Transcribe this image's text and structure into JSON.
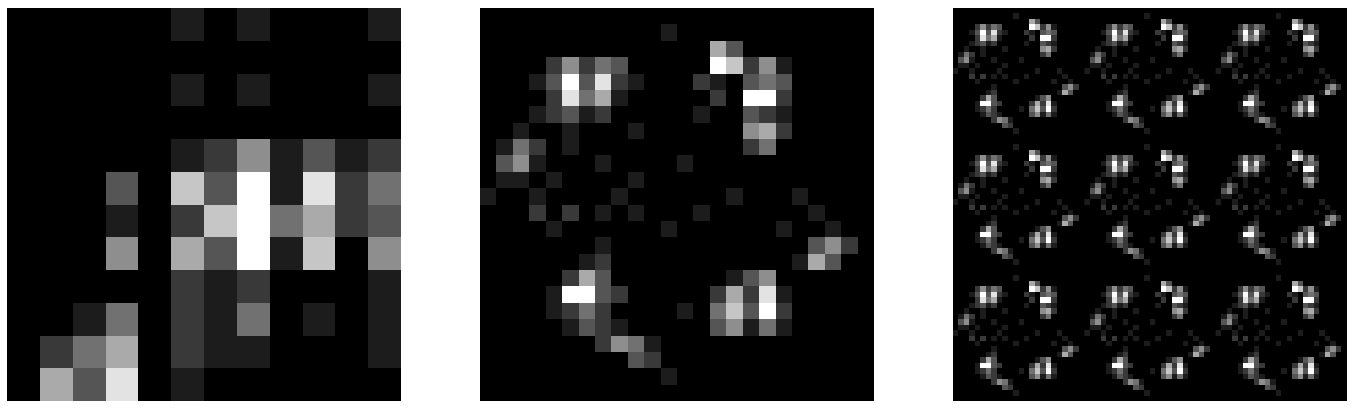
{
  "chart_data": [
    {
      "type": "heatmap",
      "zlim": [
        0,
        9
      ],
      "tick_labels": false,
      "z": [
        [
          0,
          0,
          0,
          0,
          0,
          1,
          0,
          1,
          0,
          0,
          0,
          1
        ],
        [
          0,
          0,
          0,
          0,
          0,
          0,
          0,
          0,
          0,
          0,
          0,
          0
        ],
        [
          0,
          0,
          0,
          0,
          0,
          1,
          0,
          1,
          0,
          0,
          0,
          1
        ],
        [
          0,
          0,
          0,
          0,
          0,
          0,
          0,
          0,
          0,
          0,
          0,
          0
        ],
        [
          0,
          0,
          0,
          0,
          0,
          1,
          2,
          5,
          1,
          3,
          1,
          2
        ],
        [
          0,
          0,
          0,
          3,
          0,
          7,
          3,
          9,
          1,
          8,
          2,
          4
        ],
        [
          0,
          0,
          0,
          1,
          0,
          2,
          7,
          9,
          4,
          6,
          2,
          3
        ],
        [
          0,
          0,
          0,
          5,
          0,
          6,
          3,
          9,
          1,
          7,
          0,
          5
        ],
        [
          0,
          0,
          0,
          0,
          0,
          2,
          1,
          2,
          0,
          0,
          0,
          1
        ],
        [
          0,
          0,
          1,
          4,
          0,
          2,
          1,
          4,
          0,
          1,
          0,
          1
        ],
        [
          0,
          2,
          4,
          6,
          0,
          2,
          1,
          1,
          0,
          0,
          0,
          1
        ],
        [
          0,
          6,
          3,
          8,
          0,
          1,
          0,
          0,
          0,
          0,
          0,
          0
        ]
      ]
    },
    {
      "type": "heatmap",
      "zlim": [
        0,
        9
      ],
      "tick_labels": false,
      "z": [
        [
          0,
          0,
          0,
          0,
          0,
          0,
          0,
          0,
          0,
          0,
          0,
          0,
          0,
          0,
          0,
          0,
          0,
          0,
          0,
          0,
          0,
          0,
          0,
          0
        ],
        [
          0,
          0,
          0,
          0,
          0,
          0,
          0,
          0,
          0,
          0,
          0,
          1,
          0,
          0,
          0,
          0,
          0,
          0,
          0,
          0,
          0,
          0,
          0,
          0
        ],
        [
          0,
          0,
          0,
          0,
          0,
          0,
          0,
          0,
          0,
          0,
          0,
          0,
          0,
          0,
          6,
          3,
          0,
          0,
          0,
          0,
          0,
          0,
          0,
          0
        ],
        [
          0,
          0,
          0,
          0,
          2,
          5,
          2,
          4,
          3,
          0,
          0,
          0,
          0,
          0,
          9,
          7,
          2,
          5,
          1,
          0,
          0,
          0,
          0,
          0
        ],
        [
          0,
          0,
          0,
          1,
          3,
          9,
          3,
          8,
          2,
          1,
          0,
          0,
          0,
          2,
          1,
          0,
          3,
          4,
          3,
          0,
          0,
          0,
          0,
          0
        ],
        [
          0,
          0,
          0,
          0,
          2,
          8,
          4,
          6,
          1,
          0,
          0,
          0,
          0,
          0,
          2,
          0,
          9,
          9,
          2,
          0,
          0,
          0,
          0,
          0
        ],
        [
          0,
          0,
          0,
          1,
          2,
          3,
          1,
          2,
          0,
          0,
          0,
          0,
          0,
          1,
          0,
          0,
          3,
          2,
          1,
          0,
          0,
          0,
          0,
          0
        ],
        [
          0,
          0,
          1,
          0,
          0,
          1,
          0,
          0,
          0,
          1,
          0,
          0,
          0,
          0,
          0,
          0,
          5,
          6,
          2,
          0,
          0,
          0,
          0,
          0
        ],
        [
          0,
          1,
          4,
          2,
          0,
          1,
          0,
          0,
          0,
          0,
          0,
          0,
          0,
          0,
          0,
          0,
          2,
          4,
          0,
          0,
          0,
          0,
          0,
          0
        ],
        [
          0,
          3,
          5,
          1,
          0,
          0,
          0,
          1,
          0,
          0,
          0,
          0,
          1,
          0,
          0,
          0,
          0,
          0,
          0,
          0,
          0,
          0,
          0,
          0
        ],
        [
          0,
          1,
          1,
          0,
          1,
          0,
          0,
          0,
          0,
          1,
          0,
          0,
          0,
          0,
          0,
          0,
          0,
          0,
          0,
          0,
          0,
          0,
          0,
          0
        ],
        [
          1,
          0,
          0,
          1,
          0,
          0,
          0,
          0,
          1,
          0,
          0,
          0,
          0,
          0,
          0,
          1,
          0,
          0,
          0,
          1,
          0,
          0,
          0,
          0
        ],
        [
          0,
          0,
          0,
          2,
          0,
          2,
          0,
          1,
          0,
          1,
          0,
          0,
          0,
          1,
          0,
          0,
          0,
          0,
          0,
          0,
          1,
          0,
          0,
          0
        ],
        [
          0,
          0,
          0,
          0,
          1,
          0,
          0,
          0,
          0,
          0,
          0,
          1,
          0,
          0,
          0,
          0,
          0,
          0,
          1,
          0,
          0,
          1,
          0,
          0
        ],
        [
          0,
          0,
          0,
          0,
          0,
          0,
          0,
          1,
          0,
          0,
          0,
          0,
          0,
          0,
          0,
          0,
          0,
          0,
          0,
          0,
          3,
          5,
          2,
          0
        ],
        [
          0,
          0,
          0,
          0,
          0,
          0,
          1,
          2,
          0,
          0,
          0,
          0,
          0,
          0,
          0,
          0,
          0,
          0,
          0,
          1,
          6,
          3,
          0,
          0
        ],
        [
          0,
          0,
          0,
          0,
          0,
          2,
          6,
          3,
          0,
          0,
          0,
          0,
          0,
          0,
          0,
          1,
          3,
          5,
          0,
          0,
          0,
          0,
          0,
          0
        ],
        [
          0,
          0,
          0,
          0,
          1,
          9,
          9,
          3,
          2,
          0,
          0,
          0,
          0,
          0,
          2,
          6,
          2,
          8,
          1,
          0,
          0,
          0,
          0,
          0
        ],
        [
          0,
          0,
          0,
          0,
          1,
          2,
          4,
          2,
          0,
          0,
          0,
          0,
          1,
          0,
          4,
          7,
          3,
          9,
          2,
          0,
          0,
          0,
          0,
          0
        ],
        [
          0,
          0,
          0,
          0,
          0,
          1,
          3,
          2,
          1,
          0,
          0,
          0,
          0,
          0,
          3,
          5,
          1,
          4,
          1,
          0,
          0,
          0,
          0,
          0
        ],
        [
          0,
          0,
          0,
          0,
          0,
          0,
          0,
          2,
          5,
          4,
          1,
          0,
          0,
          0,
          0,
          0,
          0,
          0,
          0,
          0,
          0,
          0,
          0,
          0
        ],
        [
          0,
          0,
          0,
          0,
          0,
          0,
          0,
          0,
          0,
          3,
          2,
          0,
          0,
          0,
          0,
          0,
          0,
          0,
          0,
          0,
          0,
          0,
          0,
          0
        ],
        [
          0,
          0,
          0,
          0,
          0,
          0,
          0,
          0,
          0,
          0,
          0,
          1,
          0,
          0,
          0,
          0,
          0,
          0,
          0,
          0,
          0,
          0,
          0,
          0
        ],
        [
          0,
          0,
          0,
          0,
          0,
          0,
          0,
          0,
          0,
          0,
          0,
          0,
          0,
          0,
          0,
          0,
          0,
          0,
          0,
          0,
          0,
          0,
          0,
          0
        ]
      ]
    },
    {
      "type": "heatmap",
      "zlim": [
        0,
        9
      ],
      "tick_labels": false,
      "repeat": [
        3,
        3
      ],
      "z": [
        [
          0,
          0,
          0,
          0,
          0,
          0,
          0,
          0,
          0,
          0,
          0,
          0,
          0,
          0,
          0,
          0,
          0,
          0,
          0,
          0,
          0,
          0,
          0,
          0
        ],
        [
          0,
          0,
          0,
          0,
          0,
          0,
          0,
          0,
          0,
          0,
          0,
          1,
          0,
          0,
          0,
          0,
          0,
          0,
          0,
          0,
          0,
          0,
          0,
          0
        ],
        [
          0,
          0,
          0,
          0,
          0,
          0,
          0,
          0,
          0,
          0,
          0,
          0,
          0,
          0,
          6,
          3,
          0,
          0,
          0,
          0,
          0,
          0,
          0,
          0
        ],
        [
          0,
          0,
          0,
          0,
          2,
          5,
          2,
          4,
          3,
          0,
          0,
          0,
          0,
          0,
          9,
          7,
          2,
          5,
          1,
          0,
          0,
          0,
          0,
          0
        ],
        [
          0,
          0,
          0,
          1,
          3,
          9,
          3,
          8,
          2,
          1,
          0,
          0,
          0,
          2,
          1,
          0,
          3,
          4,
          3,
          0,
          0,
          0,
          0,
          0
        ],
        [
          0,
          0,
          0,
          0,
          2,
          8,
          4,
          6,
          1,
          0,
          0,
          0,
          0,
          0,
          2,
          0,
          9,
          9,
          2,
          0,
          0,
          0,
          0,
          0
        ],
        [
          0,
          0,
          0,
          1,
          2,
          3,
          1,
          2,
          0,
          0,
          0,
          0,
          0,
          1,
          0,
          0,
          3,
          2,
          1,
          0,
          0,
          0,
          0,
          0
        ],
        [
          0,
          0,
          1,
          0,
          0,
          1,
          0,
          0,
          0,
          1,
          0,
          0,
          0,
          0,
          0,
          0,
          5,
          6,
          2,
          0,
          0,
          0,
          0,
          0
        ],
        [
          0,
          1,
          4,
          2,
          0,
          1,
          0,
          0,
          0,
          0,
          0,
          0,
          0,
          0,
          0,
          0,
          2,
          4,
          0,
          0,
          0,
          0,
          0,
          0
        ],
        [
          0,
          3,
          5,
          1,
          0,
          0,
          0,
          1,
          0,
          0,
          0,
          0,
          1,
          0,
          0,
          0,
          0,
          0,
          0,
          0,
          0,
          0,
          0,
          0
        ],
        [
          0,
          1,
          1,
          0,
          1,
          0,
          0,
          0,
          0,
          1,
          0,
          0,
          0,
          0,
          0,
          0,
          0,
          0,
          0,
          0,
          0,
          0,
          0,
          0
        ],
        [
          1,
          0,
          0,
          1,
          0,
          0,
          0,
          0,
          1,
          0,
          0,
          0,
          0,
          0,
          0,
          1,
          0,
          0,
          0,
          1,
          0,
          0,
          0,
          0
        ],
        [
          0,
          0,
          0,
          2,
          0,
          2,
          0,
          1,
          0,
          1,
          0,
          0,
          0,
          1,
          0,
          0,
          0,
          0,
          0,
          0,
          1,
          0,
          0,
          0
        ],
        [
          0,
          0,
          0,
          0,
          1,
          0,
          0,
          0,
          0,
          0,
          0,
          1,
          0,
          0,
          0,
          0,
          0,
          0,
          1,
          0,
          0,
          1,
          0,
          0
        ],
        [
          0,
          0,
          0,
          0,
          0,
          0,
          0,
          1,
          0,
          0,
          0,
          0,
          0,
          0,
          0,
          0,
          0,
          0,
          0,
          0,
          3,
          5,
          2,
          0
        ],
        [
          0,
          0,
          0,
          0,
          0,
          0,
          1,
          2,
          0,
          0,
          0,
          0,
          0,
          0,
          0,
          0,
          0,
          0,
          0,
          1,
          6,
          3,
          0,
          0
        ],
        [
          0,
          0,
          0,
          0,
          0,
          2,
          6,
          3,
          0,
          0,
          0,
          0,
          0,
          0,
          0,
          1,
          3,
          5,
          0,
          0,
          0,
          0,
          0,
          0
        ],
        [
          0,
          0,
          0,
          0,
          1,
          9,
          9,
          3,
          2,
          0,
          0,
          0,
          0,
          0,
          2,
          6,
          2,
          8,
          1,
          0,
          0,
          0,
          0,
          0
        ],
        [
          0,
          0,
          0,
          0,
          1,
          2,
          4,
          2,
          0,
          0,
          0,
          0,
          1,
          0,
          4,
          7,
          3,
          9,
          2,
          0,
          0,
          0,
          0,
          0
        ],
        [
          0,
          0,
          0,
          0,
          0,
          1,
          3,
          2,
          1,
          0,
          0,
          0,
          0,
          0,
          3,
          5,
          1,
          4,
          1,
          0,
          0,
          0,
          0,
          0
        ],
        [
          0,
          0,
          0,
          0,
          0,
          0,
          0,
          2,
          5,
          4,
          1,
          0,
          0,
          0,
          0,
          0,
          0,
          0,
          0,
          0,
          0,
          0,
          0,
          0
        ],
        [
          0,
          0,
          0,
          0,
          0,
          0,
          0,
          0,
          0,
          3,
          2,
          0,
          0,
          0,
          0,
          0,
          0,
          0,
          0,
          0,
          0,
          0,
          0,
          0
        ],
        [
          0,
          0,
          0,
          0,
          0,
          0,
          0,
          0,
          0,
          0,
          0,
          1,
          0,
          0,
          0,
          0,
          0,
          0,
          0,
          0,
          0,
          0,
          0,
          0
        ],
        [
          0,
          0,
          0,
          0,
          0,
          0,
          0,
          0,
          0,
          0,
          0,
          0,
          0,
          0,
          0,
          0,
          0,
          0,
          0,
          0,
          0,
          0,
          0,
          0
        ]
      ]
    }
  ]
}
